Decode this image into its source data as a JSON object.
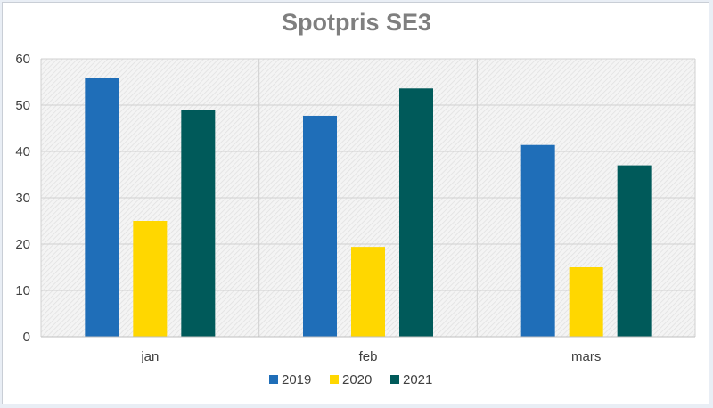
{
  "chart_data": {
    "type": "bar",
    "title": "Spotpris SE3",
    "xlabel": "",
    "ylabel": "",
    "categories": [
      "jan",
      "feb",
      "mars"
    ],
    "series": [
      {
        "name": "2019",
        "values": [
          55.8,
          47.7,
          41.4
        ],
        "color": "#1f6eb8"
      },
      {
        "name": "2020",
        "values": [
          25.0,
          19.4,
          15.0
        ],
        "color": "#ffd700"
      },
      {
        "name": "2021",
        "values": [
          49.0,
          53.6,
          37.0
        ],
        "color": "#005a5a"
      }
    ],
    "ylim": [
      0,
      60
    ],
    "yticks": [
      0,
      10,
      20,
      30,
      40,
      50,
      60
    ],
    "grid": true,
    "legend_position": "bottom"
  }
}
